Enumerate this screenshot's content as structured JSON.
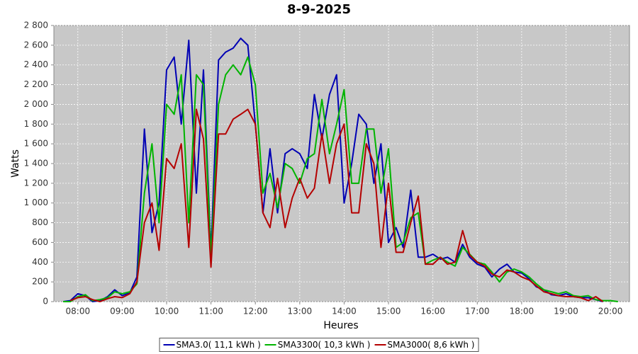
{
  "chart_data": {
    "type": "line",
    "title": "8-9-2025",
    "xlabel": "Heures",
    "ylabel": "Watts",
    "x": [
      7.67,
      7.83,
      8,
      8.17,
      8.33,
      8.5,
      8.67,
      8.83,
      9,
      9.17,
      9.33,
      9.5,
      9.67,
      9.83,
      10,
      10.17,
      10.33,
      10.5,
      10.67,
      10.83,
      11,
      11.17,
      11.33,
      11.5,
      11.67,
      11.83,
      12,
      12.17,
      12.33,
      12.5,
      12.67,
      12.83,
      13,
      13.17,
      13.33,
      13.5,
      13.67,
      13.83,
      14,
      14.17,
      14.33,
      14.5,
      14.67,
      14.83,
      15,
      15.17,
      15.33,
      15.5,
      15.67,
      15.83,
      16,
      16.17,
      16.33,
      16.5,
      16.67,
      16.83,
      17,
      17.17,
      17.33,
      17.5,
      17.67,
      17.83,
      18,
      18.17,
      18.33,
      18.5,
      18.67,
      18.83,
      19,
      19.17,
      19.33,
      19.5,
      19.67,
      19.83,
      20,
      20.17
    ],
    "series": [
      {
        "name": "SMA3.0( 11,1 kWh )",
        "color": "#0000b4",
        "values": [
          0,
          10,
          80,
          60,
          0,
          10,
          50,
          120,
          60,
          90,
          250,
          1750,
          700,
          1000,
          2350,
          2480,
          1800,
          2650,
          1100,
          2350,
          500,
          2450,
          2530,
          2570,
          2670,
          2600,
          1800,
          900,
          1550,
          900,
          1500,
          1550,
          1500,
          1350,
          2100,
          1650,
          2100,
          2300,
          1000,
          1400,
          1900,
          1800,
          1200,
          1600,
          600,
          750,
          550,
          1130,
          450,
          450,
          480,
          430,
          450,
          400,
          580,
          450,
          380,
          350,
          250,
          330,
          380,
          300,
          290,
          230,
          150,
          120,
          70,
          60,
          80,
          50,
          40,
          40,
          20,
          0,
          null,
          null
        ]
      },
      {
        "name": "SMA3300( 10,3 kWh )",
        "color": "#00b400",
        "values": [
          0,
          0,
          50,
          70,
          10,
          20,
          40,
          100,
          80,
          100,
          180,
          1100,
          1600,
          800,
          2000,
          1900,
          2300,
          800,
          2300,
          2200,
          450,
          2000,
          2300,
          2400,
          2300,
          2480,
          2200,
          1100,
          1300,
          950,
          1400,
          1350,
          1200,
          1450,
          1500,
          2050,
          1500,
          1800,
          2150,
          1200,
          1200,
          1750,
          1750,
          1100,
          1550,
          550,
          600,
          850,
          900,
          380,
          420,
          450,
          400,
          360,
          550,
          480,
          400,
          380,
          300,
          200,
          300,
          330,
          300,
          250,
          180,
          120,
          100,
          80,
          100,
          60,
          50,
          60,
          20,
          10,
          10,
          0
        ]
      },
      {
        "name": "SMA3000( 8,6 kWh )",
        "color": "#b40000",
        "values": [
          null,
          10,
          40,
          50,
          20,
          0,
          30,
          50,
          40,
          80,
          200,
          800,
          1000,
          520,
          1450,
          1350,
          1600,
          550,
          1950,
          1650,
          350,
          1700,
          1700,
          1850,
          1900,
          1950,
          1800,
          900,
          750,
          1250,
          750,
          1050,
          1250,
          1050,
          1150,
          1700,
          1200,
          1600,
          1800,
          900,
          900,
          1600,
          1400,
          550,
          1200,
          500,
          500,
          800,
          1070,
          380,
          380,
          450,
          380,
          400,
          720,
          470,
          400,
          360,
          280,
          250,
          320,
          300,
          250,
          220,
          160,
          100,
          80,
          60,
          50,
          50,
          40,
          10,
          50,
          0,
          null,
          null
        ]
      }
    ],
    "xlim": [
      7.46,
      20.43
    ],
    "xticks": [
      {
        "value": 8,
        "label": "08:00"
      },
      {
        "value": 9,
        "label": "09:00"
      },
      {
        "value": 10,
        "label": "10:00"
      },
      {
        "value": 11,
        "label": "11:00"
      },
      {
        "value": 12,
        "label": "12:00"
      },
      {
        "value": 13,
        "label": "13:00"
      },
      {
        "value": 14,
        "label": "14:00"
      },
      {
        "value": 15,
        "label": "15:00"
      },
      {
        "value": 16,
        "label": "16:00"
      },
      {
        "value": 17,
        "label": "17:00"
      },
      {
        "value": 18,
        "label": "18:00"
      },
      {
        "value": 19,
        "label": "19:00"
      },
      {
        "value": 20,
        "label": "20:00"
      }
    ],
    "ylim": [
      0,
      2800
    ],
    "yticks": [
      0,
      200,
      400,
      600,
      800,
      {
        "value": 1000,
        "label": "1 000"
      },
      {
        "value": 1200,
        "label": "1 200"
      },
      {
        "value": 1400,
        "label": "1 400"
      },
      {
        "value": 1600,
        "label": "1 600"
      },
      {
        "value": 1800,
        "label": "1 800"
      },
      {
        "value": 2000,
        "label": "2 000"
      },
      {
        "value": 2200,
        "label": "2 200"
      },
      {
        "value": 2400,
        "label": "2 400"
      },
      {
        "value": 2600,
        "label": "2 600"
      },
      {
        "value": 2800,
        "label": "2 800"
      }
    ],
    "grid": true,
    "legend": "bottom"
  }
}
